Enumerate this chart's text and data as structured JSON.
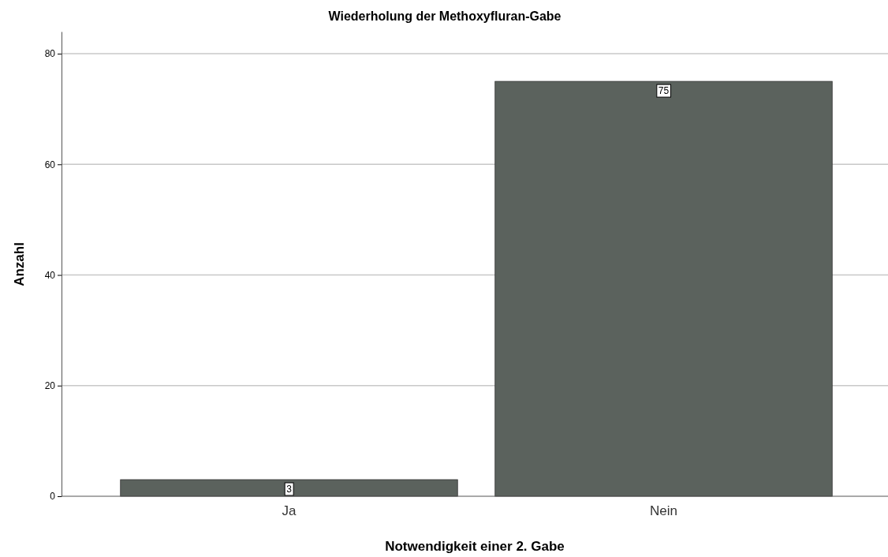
{
  "chart_data": {
    "type": "bar",
    "title": "Wiederholung der Methoxyfluran-Gabe",
    "xlabel": "Notwendigkeit einer 2. Gabe",
    "ylabel": "Anzahl",
    "categories": [
      "Ja",
      "Nein"
    ],
    "values": [
      3,
      75
    ],
    "color": "#5b625d",
    "ylim": [
      0,
      84
    ],
    "yticks": [
      0,
      20,
      40,
      60,
      80
    ],
    "grid": "y",
    "data_labels": true
  }
}
